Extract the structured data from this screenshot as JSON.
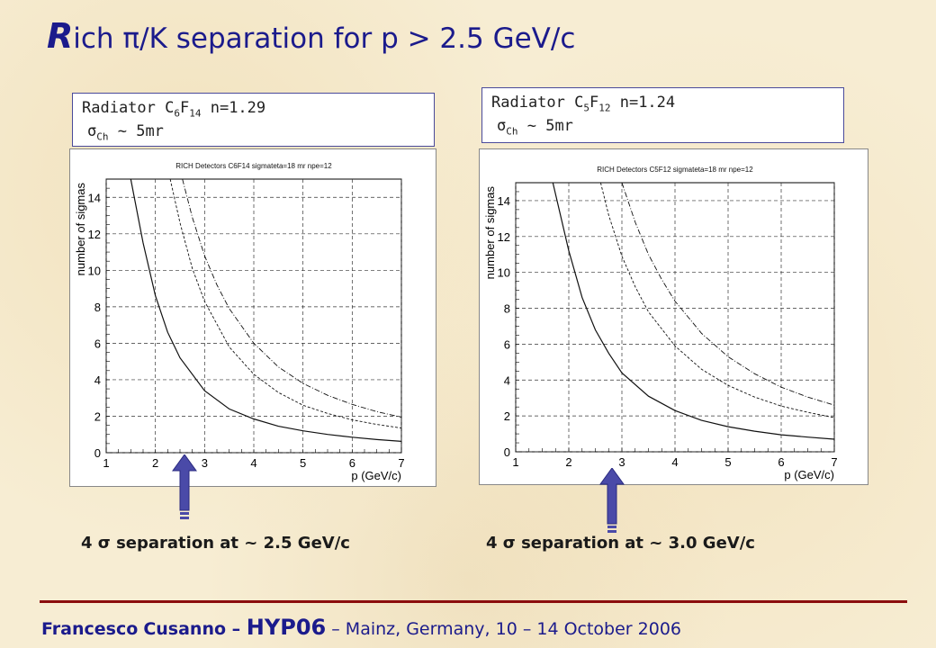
{
  "slide": {
    "title_cap": "R",
    "title_rest": "ich π/K separation for p > 2.5 GeV/c"
  },
  "radiators": [
    {
      "formula_a": "Radiator C",
      "sub1": "6",
      "f": "F",
      "sub2": "14",
      "n_text": " n=1.29",
      "sigma_sym": "σ",
      "sigma_sub": "Ch",
      "sigma_rest": " ~ 5mr"
    },
    {
      "formula_a": "Radiator C",
      "sub1": "5",
      "f": "F",
      "sub2": "12",
      "n_text": " n=1.24",
      "sigma_sym": "σ",
      "sigma_sub": "Ch",
      "sigma_rest": " ~ 5mr"
    }
  ],
  "separations": [
    "4 σ separation at ~ 2.5 GeV/c",
    "4 σ separation at ~ 3.0 GeV/c"
  ],
  "footer": {
    "name_first": "Francesco",
    "name_last": "Cusanno",
    "dash1": " – ",
    "conf": "HYP06",
    "rest": " – Mainz, Germany, 10 – 14 October 2006"
  },
  "colors": {
    "title": "#1b1b8c",
    "rule": "#8b0d0d",
    "arrow": "#4a4aa8"
  },
  "chart_data": [
    {
      "type": "line",
      "title": "RICH Detectors C6F14 sigmateta=18 mr npe=12",
      "xlabel": "p (GeV/c)",
      "ylabel": "number of sigmas",
      "xlim": [
        1,
        7
      ],
      "ylim": [
        0,
        15
      ],
      "xticks": [
        1,
        2,
        3,
        4,
        5,
        6,
        7
      ],
      "yticks": [
        0,
        2,
        4,
        6,
        8,
        10,
        12,
        14
      ],
      "grid": true,
      "series": [
        {
          "style": "solid",
          "x": [
            1.5,
            1.75,
            2,
            2.25,
            2.5,
            3,
            3.5,
            4,
            4.5,
            5,
            5.5,
            6,
            6.5,
            7
          ],
          "y": [
            15,
            11.5,
            8.6,
            6.6,
            5.2,
            3.4,
            2.4,
            1.85,
            1.45,
            1.2,
            1.0,
            0.85,
            0.72,
            0.62
          ]
        },
        {
          "style": "dashed",
          "x": [
            2.3,
            2.5,
            2.75,
            3,
            3.5,
            4,
            4.5,
            5,
            5.5,
            6,
            6.5,
            7
          ],
          "y": [
            15,
            12.6,
            10.1,
            8.3,
            5.8,
            4.3,
            3.3,
            2.6,
            2.15,
            1.8,
            1.55,
            1.35
          ]
        },
        {
          "style": "dashdot",
          "x": [
            2.55,
            2.75,
            3,
            3.25,
            3.5,
            4,
            4.5,
            5,
            5.5,
            6,
            6.5,
            7
          ],
          "y": [
            15,
            12.9,
            10.8,
            9.2,
            7.9,
            6.0,
            4.7,
            3.8,
            3.15,
            2.65,
            2.25,
            1.95
          ]
        }
      ]
    },
    {
      "type": "line",
      "title": "RICH Detectors C5F12 sigmateta=18 mr npe=12",
      "xlabel": "p (GeV/c)",
      "ylabel": "number of sigmas",
      "xlim": [
        1,
        7
      ],
      "ylim": [
        0,
        15
      ],
      "xticks": [
        1,
        2,
        3,
        4,
        5,
        6,
        7
      ],
      "yticks": [
        0,
        2,
        4,
        6,
        8,
        10,
        12,
        14
      ],
      "grid": true,
      "series": [
        {
          "style": "solid",
          "x": [
            1.7,
            2,
            2.25,
            2.5,
            2.75,
            3,
            3.5,
            4,
            4.5,
            5,
            5.5,
            6,
            6.5,
            7
          ],
          "y": [
            15,
            11.2,
            8.6,
            6.8,
            5.5,
            4.4,
            3.1,
            2.3,
            1.75,
            1.4,
            1.15,
            0.95,
            0.82,
            0.7
          ]
        },
        {
          "style": "dashed",
          "x": [
            2.6,
            2.75,
            3,
            3.25,
            3.5,
            4,
            4.5,
            5,
            5.5,
            6,
            6.5,
            7
          ],
          "y": [
            15,
            13.2,
            10.9,
            9.2,
            7.8,
            5.9,
            4.6,
            3.7,
            3.05,
            2.55,
            2.2,
            1.9
          ]
        },
        {
          "style": "dashdot",
          "x": [
            3.0,
            3.25,
            3.5,
            3.75,
            4,
            4.5,
            5,
            5.5,
            6,
            6.5,
            7
          ],
          "y": [
            15,
            12.8,
            11.0,
            9.6,
            8.4,
            6.6,
            5.3,
            4.35,
            3.6,
            3.05,
            2.6
          ]
        }
      ]
    }
  ]
}
